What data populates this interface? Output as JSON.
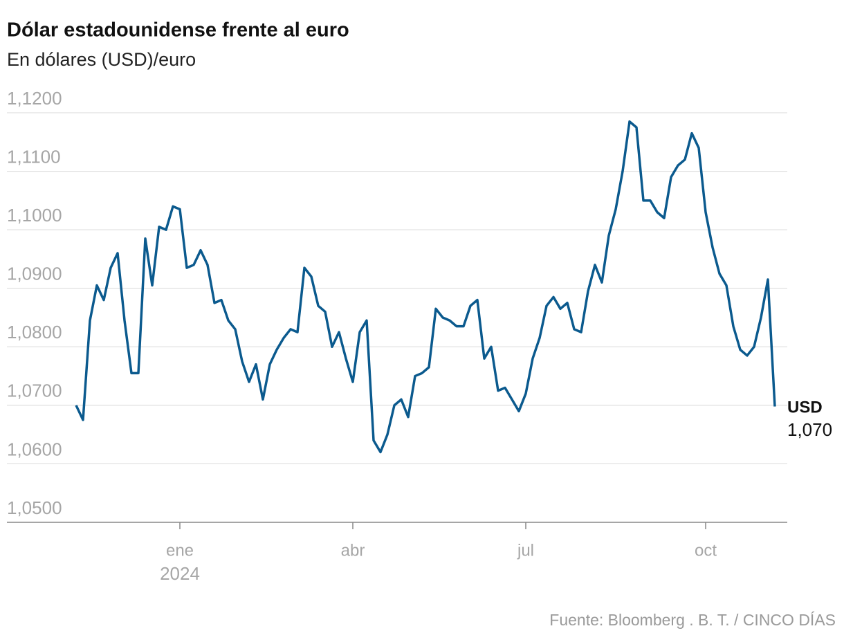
{
  "chart_data": {
    "type": "line",
    "title": "Dólar estadounidense frente al euro",
    "subtitle": "En dólares (USD)/euro",
    "source": "Fuente: Bloomberg . B. T. / CINCO DÍAS",
    "categories": [
      null,
      null,
      null,
      null,
      null,
      null,
      null,
      null,
      null,
      null,
      null,
      null,
      null,
      null,
      null,
      "ene",
      null,
      null,
      null,
      null,
      null,
      null,
      null,
      null,
      null,
      null,
      null,
      null,
      null,
      null,
      null,
      null,
      null,
      null,
      null,
      null,
      null,
      null,
      null,
      null,
      "abr",
      null,
      null,
      null,
      null,
      null,
      null,
      null,
      null,
      null,
      null,
      null,
      null,
      null,
      null,
      null,
      null,
      null,
      null,
      null,
      null,
      null,
      null,
      null,
      null,
      "jul",
      null,
      null,
      null,
      null,
      null,
      null,
      null,
      null,
      null,
      null,
      null,
      null,
      null,
      null,
      null,
      null,
      null,
      null,
      null,
      null,
      null,
      null,
      null,
      null,
      null,
      "oct",
      null,
      null,
      null,
      null,
      null,
      null,
      null,
      null,
      null,
      null
    ],
    "x_year": "2024",
    "series": [
      {
        "name": "USD",
        "color": "#0b5a8e",
        "values": [
          1.07,
          1.0675,
          1.0845,
          1.0905,
          1.088,
          1.0935,
          1.096,
          1.0845,
          1.0755,
          1.0755,
          1.0985,
          1.0905,
          1.1005,
          1.1,
          1.104,
          1.1035,
          1.0935,
          1.094,
          1.0965,
          1.094,
          1.0875,
          1.088,
          1.0845,
          1.083,
          1.0775,
          1.074,
          1.077,
          1.071,
          1.077,
          1.0795,
          1.0815,
          1.083,
          1.0825,
          1.0935,
          1.092,
          1.087,
          1.086,
          1.08,
          1.0825,
          1.078,
          1.074,
          1.0825,
          1.0845,
          1.064,
          1.062,
          1.065,
          1.07,
          1.071,
          1.068,
          1.075,
          1.0755,
          1.0765,
          1.0865,
          1.085,
          1.0845,
          1.0835,
          1.0835,
          1.087,
          1.088,
          1.078,
          1.08,
          1.0725,
          1.073,
          1.071,
          1.069,
          1.072,
          1.078,
          1.0815,
          1.087,
          1.0885,
          1.0865,
          1.0875,
          1.083,
          1.0825,
          1.0895,
          1.094,
          1.091,
          1.099,
          1.1035,
          1.11,
          1.1185,
          1.1175,
          1.105,
          1.105,
          1.103,
          1.102,
          1.109,
          1.111,
          1.112,
          1.1165,
          1.114,
          1.103,
          1.097,
          1.0925,
          1.0905,
          1.0835,
          1.0795,
          1.0785,
          1.08,
          1.085,
          1.0915,
          1.0698
        ],
        "value_labels": [
          null,
          null,
          null,
          null,
          null,
          null,
          null,
          null,
          null,
          null,
          null,
          null,
          null,
          null,
          null,
          null,
          null,
          null,
          null,
          null,
          null,
          null,
          null,
          null,
          null,
          null,
          null,
          null,
          null,
          null,
          null,
          null,
          null,
          null,
          null,
          null,
          null,
          null,
          null,
          null,
          null,
          null,
          null,
          null,
          null,
          null,
          null,
          null,
          null,
          null,
          null,
          null,
          null,
          null,
          null,
          null,
          null,
          null,
          null,
          null,
          null,
          null,
          null,
          null,
          null,
          null,
          null,
          null,
          null,
          null,
          null,
          null,
          null,
          null,
          null,
          null,
          null,
          null,
          null,
          null,
          null,
          null,
          null,
          null,
          null,
          null,
          null,
          null,
          null,
          null,
          null,
          null,
          null,
          null,
          null,
          null,
          null,
          null,
          null,
          null,
          null,
          "1,070"
        ]
      }
    ],
    "ylim": [
      1.05,
      1.12
    ],
    "yticks": [
      {
        "value": 1.05,
        "label": "1,0500"
      },
      {
        "value": 1.06,
        "label": "1,0600"
      },
      {
        "value": 1.07,
        "label": "1,0700"
      },
      {
        "value": 1.08,
        "label": "1,0800"
      },
      {
        "value": 1.09,
        "label": "1,0900"
      },
      {
        "value": 1.1,
        "label": "1,1000"
      },
      {
        "value": 1.11,
        "label": "1,1100"
      },
      {
        "value": 1.12,
        "label": "1,1200"
      }
    ],
    "grid": true
  }
}
